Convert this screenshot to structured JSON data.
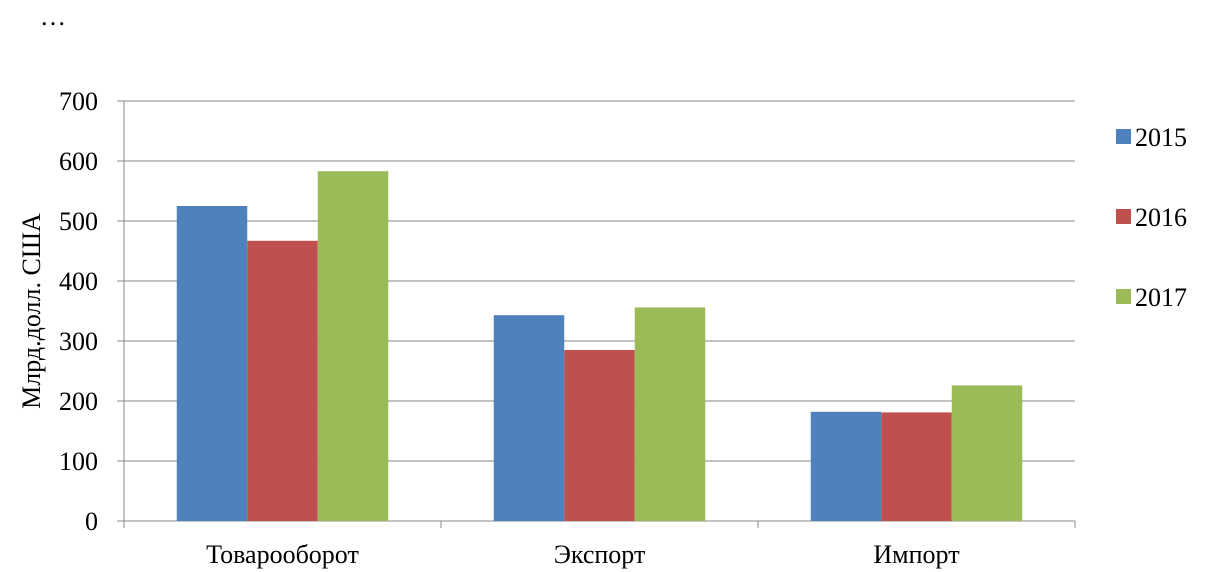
{
  "header": {
    "ellipsis": "…"
  },
  "chart_data": {
    "type": "bar",
    "title": "",
    "xlabel": "",
    "ylabel": "Млрд.долл. США",
    "categories": [
      "Товарооборот",
      "Экспорт",
      "Импорт"
    ],
    "series": [
      {
        "name": "2015",
        "color": "#4F81BD",
        "values": [
          525,
          343,
          182
        ]
      },
      {
        "name": "2016",
        "color": "#C0504D",
        "values": [
          467,
          285,
          181
        ]
      },
      {
        "name": "2017",
        "color": "#9BBB59",
        "values": [
          583,
          356,
          226
        ]
      }
    ],
    "ylim": [
      0,
      700
    ],
    "yticks": [
      "0",
      "100",
      "200",
      "300",
      "400",
      "500",
      "600",
      "700"
    ],
    "grid": true,
    "legend": "right"
  }
}
